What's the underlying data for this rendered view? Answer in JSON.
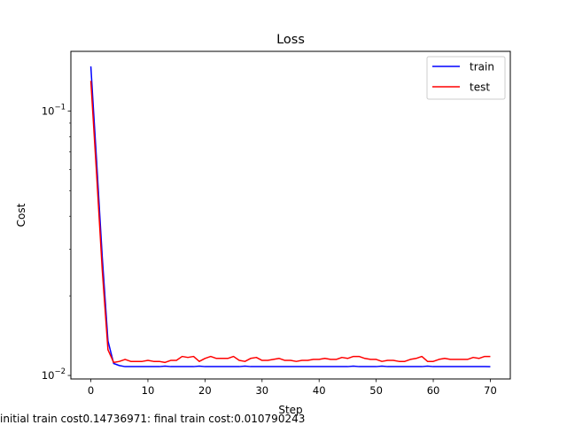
{
  "chart_data": {
    "type": "line",
    "title": "Loss",
    "xlabel": "Step",
    "ylabel": "Cost",
    "yscale": "log",
    "xlim": [
      -3.5,
      73.5
    ],
    "ylim": [
      0.0097,
      0.168
    ],
    "x_ticks": [
      0,
      10,
      20,
      30,
      40,
      50,
      60,
      70
    ],
    "y_ticks": [
      {
        "value": 0.1,
        "label": "10^-1"
      },
      {
        "value": 0.01,
        "label": "10^-2"
      }
    ],
    "grid": false,
    "legend": "top-right",
    "x": [
      0,
      1,
      2,
      3,
      4,
      5,
      6,
      7,
      8,
      9,
      10,
      11,
      12,
      13,
      14,
      15,
      16,
      17,
      18,
      19,
      20,
      21,
      22,
      23,
      24,
      25,
      26,
      27,
      28,
      29,
      30,
      31,
      32,
      33,
      34,
      35,
      36,
      37,
      38,
      39,
      40,
      41,
      42,
      43,
      44,
      45,
      46,
      47,
      48,
      49,
      50,
      51,
      52,
      53,
      54,
      55,
      56,
      57,
      58,
      59,
      60,
      61,
      62,
      63,
      64,
      65,
      66,
      67,
      68,
      69,
      70
    ],
    "series": [
      {
        "name": "train",
        "color": "#0000ff",
        "values": [
          0.14737,
          0.065,
          0.028,
          0.0135,
          0.0111,
          0.0109,
          0.0108,
          0.0108,
          0.0108,
          0.0108,
          0.0108,
          0.0108,
          0.0108,
          0.01085,
          0.0108,
          0.0108,
          0.0108,
          0.0108,
          0.0108,
          0.01085,
          0.0108,
          0.0108,
          0.0108,
          0.0108,
          0.0108,
          0.0108,
          0.0108,
          0.01085,
          0.0108,
          0.0108,
          0.0108,
          0.0108,
          0.0108,
          0.0108,
          0.0108,
          0.0108,
          0.0108,
          0.0108,
          0.0108,
          0.0108,
          0.0108,
          0.0108,
          0.0108,
          0.0108,
          0.0108,
          0.0108,
          0.01085,
          0.0108,
          0.0108,
          0.0108,
          0.0108,
          0.01085,
          0.0108,
          0.0108,
          0.0108,
          0.0108,
          0.0108,
          0.0108,
          0.0108,
          0.01085,
          0.0108,
          0.0108,
          0.0108,
          0.0108,
          0.0108,
          0.0108,
          0.0108,
          0.0108,
          0.0108,
          0.0108,
          0.01079
        ]
      },
      {
        "name": "test",
        "color": "#ff0000",
        "values": [
          0.13,
          0.058,
          0.025,
          0.0125,
          0.0112,
          0.0113,
          0.0115,
          0.0113,
          0.0113,
          0.0113,
          0.0114,
          0.0113,
          0.0113,
          0.0112,
          0.0114,
          0.0114,
          0.0118,
          0.0117,
          0.0118,
          0.0113,
          0.0116,
          0.0118,
          0.0116,
          0.0116,
          0.0116,
          0.0118,
          0.0114,
          0.0113,
          0.0116,
          0.0117,
          0.0114,
          0.0114,
          0.0115,
          0.0116,
          0.0114,
          0.0114,
          0.0113,
          0.0114,
          0.0114,
          0.0115,
          0.0115,
          0.0116,
          0.0115,
          0.0115,
          0.0117,
          0.0116,
          0.0118,
          0.0118,
          0.0116,
          0.0115,
          0.0115,
          0.0113,
          0.0114,
          0.0114,
          0.0113,
          0.0113,
          0.0115,
          0.0116,
          0.0118,
          0.0113,
          0.0113,
          0.0115,
          0.0116,
          0.0115,
          0.0115,
          0.0115,
          0.0115,
          0.0117,
          0.0116,
          0.0118,
          0.0118
        ]
      }
    ]
  },
  "footnote": "initial train cost0.14736971: final train cost:0.010790243"
}
